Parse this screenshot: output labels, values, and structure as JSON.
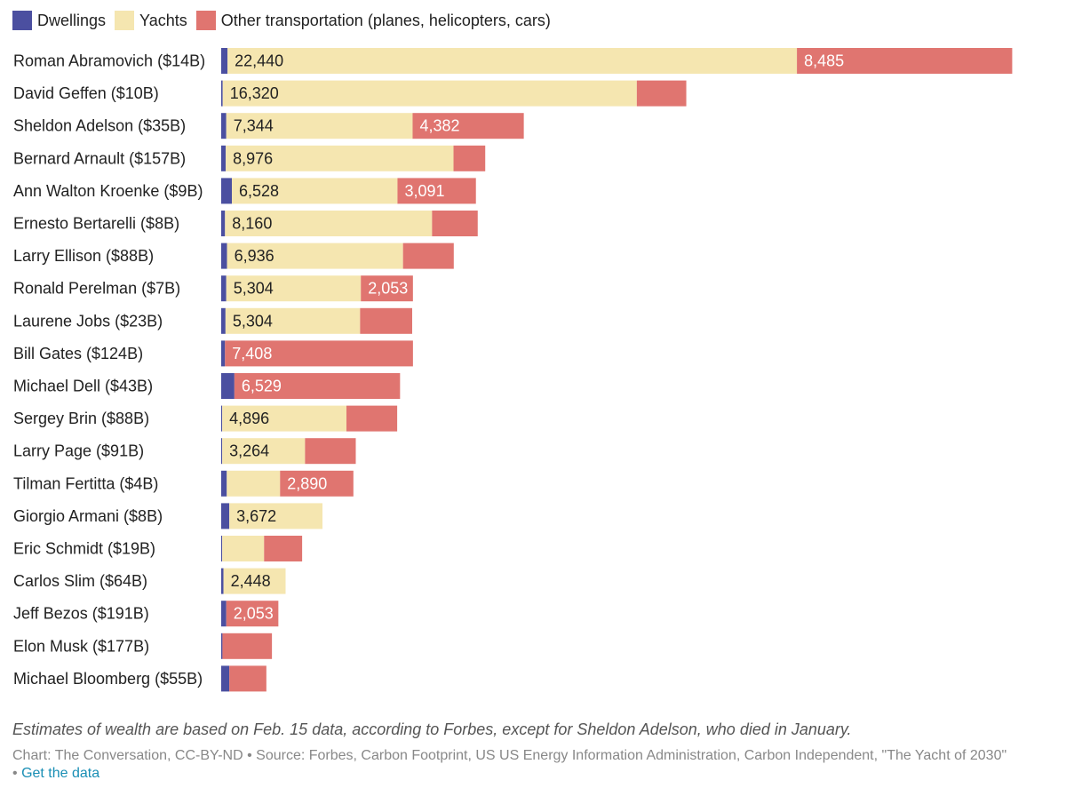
{
  "chart_data": {
    "type": "bar",
    "orientation": "horizontal",
    "stacked": true,
    "title": "",
    "xlabel": "",
    "ylabel": "",
    "xlim": [
      0,
      32000
    ],
    "grid": false,
    "legend_position": "top-left",
    "colors": {
      "Dwellings": "#4b4fa0",
      "Yachts": "#f5e6b0",
      "Other transportation (planes, helicopters, cars)": "#e07570"
    },
    "categories": [
      "Roman Abramovich ($14B)",
      "David Geffen ($10B)",
      "Sheldon Adelson ($35B)",
      "Bernard Arnault ($157B)",
      "Ann Walton Kroenke ($9B)",
      "Ernesto Bertarelli ($8B)",
      "Larry Ellison ($88B)",
      "Ronald Perelman ($7B)",
      "Laurene Jobs ($23B)",
      "Bill Gates ($124B)",
      "Michael Dell ($43B)",
      "Sergey Brin ($88B)",
      "Larry Page ($91B)",
      "Tilman Fertitta ($4B)",
      "Giorgio Armani ($8B)",
      "Eric Schmidt ($19B)",
      "Carlos Slim ($64B)",
      "Jeff Bezos ($191B)",
      "Elon Musk ($177B)",
      "Michael Bloomberg ($55B)"
    ],
    "series": [
      {
        "name": "Dwellings",
        "values": [
          250,
          60,
          200,
          180,
          420,
          150,
          230,
          200,
          170,
          150,
          520,
          40,
          40,
          220,
          320,
          40,
          90,
          200,
          50,
          320
        ],
        "labels": [
          "",
          "",
          "",
          "",
          "",
          "",
          "",
          "",
          "",
          "",
          "",
          "",
          "",
          "",
          "",
          "",
          "",
          "",
          "",
          ""
        ]
      },
      {
        "name": "Yachts",
        "values": [
          22440,
          16320,
          7344,
          8976,
          6528,
          8160,
          6936,
          5304,
          5304,
          0,
          0,
          4896,
          3264,
          2100,
          3672,
          1650,
          2448,
          0,
          0,
          0
        ],
        "labels": [
          "22,440",
          "16,320",
          "7,344",
          "8,976",
          "6,528",
          "8,160",
          "6,936",
          "5,304",
          "5,304",
          "",
          "",
          "4,896",
          "3,264",
          "",
          "3,672",
          "",
          "2,448",
          "",
          "",
          ""
        ]
      },
      {
        "name": "Other transportation (planes, helicopters, cars)",
        "values": [
          8485,
          1950,
          4382,
          1250,
          3091,
          1800,
          2000,
          2053,
          2053,
          7408,
          6529,
          2000,
          2000,
          2890,
          0,
          1500,
          0,
          2053,
          1950,
          1460
        ],
        "labels": [
          "8,485",
          "",
          "4,382",
          "",
          "3,091",
          "",
          "",
          "2,053",
          "",
          "7,408",
          "6,529",
          "",
          "",
          "2,890",
          "",
          "",
          "",
          "2,053",
          "",
          ""
        ]
      }
    ]
  },
  "legend": [
    {
      "label": "Dwellings",
      "color": "#4b4fa0"
    },
    {
      "label": "Yachts",
      "color": "#f5e6b0"
    },
    {
      "label": "Other transportation (planes, helicopters, cars)",
      "color": "#e07570"
    }
  ],
  "footer": {
    "note": "Estimates of wealth are based on Feb. 15 data, according to Forbes, except for Sheldon Adelson, who died in January.",
    "source": "Chart: The Conversation, CC-BY-ND • Source: Forbes, Carbon Footprint, US US Energy Information Administration, Carbon Independent, \"The Yacht of 2030\"",
    "bullet": "•",
    "link": "Get the data"
  }
}
